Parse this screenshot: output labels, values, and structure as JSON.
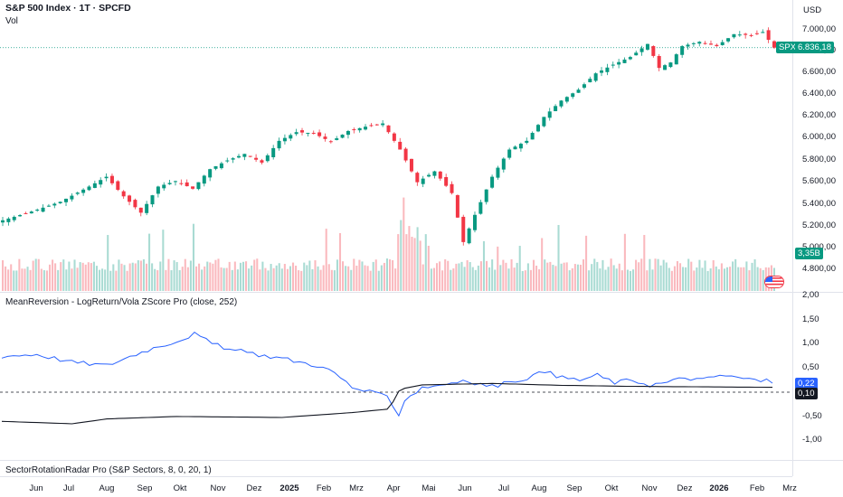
{
  "legend": {
    "symbol_title": "S&P 500 Index · 1T · SPCFD",
    "vol_label": "Vol"
  },
  "indicator": {
    "title": "MeanReversion - LogReturn/Vola ZScore Pro (close, 252)",
    "blue_value": "0,22",
    "black_value": "0,10",
    "blue_color": "#2962ff",
    "black_color": "#131722"
  },
  "sector": {
    "title": "SectorRotationRadar Pro (S&P Sectors, 8, 0, 20, 1)"
  },
  "price_scale": {
    "currency": "USD",
    "main_ticks": [
      "7.000,00",
      "6.800,00",
      "6.600,00",
      "6.400,00",
      "6.200,00",
      "6.000,00",
      "5.800,00",
      "5.600,00",
      "5.400,00",
      "5.200,00",
      "5.000,00",
      "4.800,00"
    ],
    "indicator_ticks": [
      "2,00",
      "1,50",
      "1,00",
      "0,50",
      "-0,50",
      "-1,00"
    ],
    "last_price_symbol": "SPX",
    "last_price": "6.836,18",
    "last_price_color": "#089981",
    "volume_value": "3,35B",
    "volume_color": "#089981"
  },
  "time_axis": {
    "labels": [
      {
        "text": "Jun",
        "bold": false
      },
      {
        "text": "Jul",
        "bold": false
      },
      {
        "text": "Aug",
        "bold": false
      },
      {
        "text": "Sep",
        "bold": false
      },
      {
        "text": "Okt",
        "bold": false
      },
      {
        "text": "Nov",
        "bold": false
      },
      {
        "text": "Dez",
        "bold": false
      },
      {
        "text": "2025",
        "bold": true
      },
      {
        "text": "Feb",
        "bold": false
      },
      {
        "text": "Mrz",
        "bold": false
      },
      {
        "text": "Apr",
        "bold": false
      },
      {
        "text": "Mai",
        "bold": false
      },
      {
        "text": "Jun",
        "bold": false
      },
      {
        "text": "Jul",
        "bold": false
      },
      {
        "text": "Aug",
        "bold": false
      },
      {
        "text": "Sep",
        "bold": false
      },
      {
        "text": "Okt",
        "bold": false
      },
      {
        "text": "Nov",
        "bold": false
      },
      {
        "text": "Dez",
        "bold": false
      },
      {
        "text": "2026",
        "bold": true
      },
      {
        "text": "Feb",
        "bold": false
      },
      {
        "text": "Mrz",
        "bold": false
      }
    ]
  },
  "colors": {
    "up": "#089981",
    "down": "#f23645",
    "grid": "#e0e3eb"
  },
  "chart_data": {
    "type": "candlestick",
    "price_anchors": [
      [
        0,
        5250
      ],
      [
        5,
        5330
      ],
      [
        10,
        5420
      ],
      [
        15,
        5560
      ],
      [
        18,
        5650
      ],
      [
        21,
        5470
      ],
      [
        24,
        5320
      ],
      [
        27,
        5560
      ],
      [
        30,
        5610
      ],
      [
        33,
        5540
      ],
      [
        36,
        5720
      ],
      [
        39,
        5800
      ],
      [
        42,
        5860
      ],
      [
        45,
        5780
      ],
      [
        48,
        5980
      ],
      [
        51,
        6060
      ],
      [
        54,
        6050
      ],
      [
        57,
        5970
      ],
      [
        60,
        6070
      ],
      [
        63,
        6110
      ],
      [
        66,
        6140
      ],
      [
        69,
        5900
      ],
      [
        72,
        5600
      ],
      [
        75,
        5700
      ],
      [
        78,
        5500
      ],
      [
        80,
        5050
      ],
      [
        82,
        5300
      ],
      [
        85,
        5650
      ],
      [
        88,
        5900
      ],
      [
        91,
        5980
      ],
      [
        94,
        6200
      ],
      [
        97,
        6350
      ],
      [
        100,
        6450
      ],
      [
        103,
        6600
      ],
      [
        106,
        6680
      ],
      [
        109,
        6750
      ],
      [
        112,
        6870
      ],
      [
        114,
        6650
      ],
      [
        116,
        6700
      ],
      [
        118,
        6850
      ],
      [
        121,
        6890
      ],
      [
        124,
        6850
      ],
      [
        127,
        6960
      ],
      [
        130,
        6950
      ],
      [
        132,
        6980
      ],
      [
        134,
        6836.18
      ]
    ],
    "zscore_blue_anchors": [
      [
        0,
        0.74
      ],
      [
        6,
        0.78
      ],
      [
        12,
        0.62
      ],
      [
        18,
        0.55
      ],
      [
        24,
        0.83
      ],
      [
        27,
        0.95
      ],
      [
        30,
        1.05
      ],
      [
        33,
        1.2
      ],
      [
        36,
        1.0
      ],
      [
        39,
        0.88
      ],
      [
        42,
        0.82
      ],
      [
        45,
        0.75
      ],
      [
        48,
        0.7
      ],
      [
        51,
        0.62
      ],
      [
        54,
        0.55
      ],
      [
        57,
        0.4
      ],
      [
        60,
        0.1
      ],
      [
        63,
        0.0
      ],
      [
        66,
        -0.1
      ],
      [
        67,
        -0.3
      ],
      [
        68,
        -0.45
      ],
      [
        69,
        -0.15
      ],
      [
        72,
        0.1
      ],
      [
        75,
        0.15
      ],
      [
        78,
        0.22
      ],
      [
        81,
        0.18
      ],
      [
        84,
        0.12
      ],
      [
        87,
        0.2
      ],
      [
        90,
        0.3
      ],
      [
        93,
        0.42
      ],
      [
        96,
        0.3
      ],
      [
        99,
        0.25
      ],
      [
        102,
        0.35
      ],
      [
        105,
        0.2
      ],
      [
        108,
        0.25
      ],
      [
        111,
        0.15
      ],
      [
        114,
        0.2
      ],
      [
        117,
        0.3
      ],
      [
        120,
        0.25
      ],
      [
        123,
        0.35
      ],
      [
        126,
        0.3
      ],
      [
        129,
        0.25
      ],
      [
        132,
        0.22
      ]
    ],
    "zscore_black_anchors": [
      [
        0,
        -0.6
      ],
      [
        12,
        -0.65
      ],
      [
        18,
        -0.55
      ],
      [
        30,
        -0.5
      ],
      [
        48,
        -0.52
      ],
      [
        60,
        -0.42
      ],
      [
        66,
        -0.35
      ],
      [
        67,
        -0.2
      ],
      [
        68,
        0.02
      ],
      [
        69,
        0.08
      ],
      [
        72,
        0.15
      ],
      [
        84,
        0.18
      ],
      [
        96,
        0.14
      ],
      [
        108,
        0.12
      ],
      [
        120,
        0.11
      ],
      [
        132,
        0.1
      ]
    ],
    "main_ylim": [
      4620,
      7120
    ],
    "indicator_ylim": [
      -1.27,
      2.07
    ],
    "dashed_level": 0.0
  }
}
